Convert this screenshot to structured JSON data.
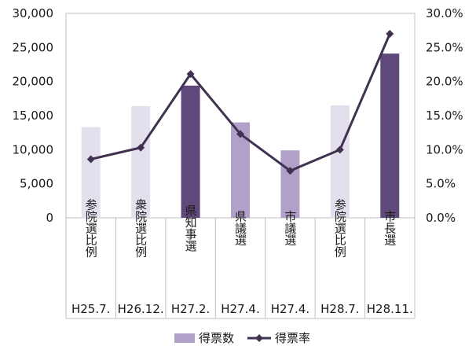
{
  "chart_data": {
    "type": "bar+line",
    "categories": [
      {
        "election": "参院選比例",
        "date": "H25.7."
      },
      {
        "election": "衆院選比例",
        "date": "H26.12."
      },
      {
        "election": "県知事選",
        "date": "H27.2."
      },
      {
        "election": "県議選",
        "date": "H27.4."
      },
      {
        "election": "市議選",
        "date": "H27.4."
      },
      {
        "election": "参院選比例",
        "date": "H28.7."
      },
      {
        "election": "市長選",
        "date": "H28.11."
      }
    ],
    "series": [
      {
        "name": "得票数",
        "type": "bar",
        "axis": "left",
        "values": [
          13300,
          16400,
          19400,
          14000,
          9900,
          16500,
          24100
        ],
        "colors": [
          "#e4dfec",
          "#e4dfec",
          "#5f497a",
          "#b1a0c7",
          "#b1a0c7",
          "#e4dfec",
          "#5f497a"
        ],
        "legend_color": "#b1a0c7"
      },
      {
        "name": "得票率",
        "type": "line",
        "axis": "right",
        "values": [
          8.6,
          10.3,
          21.1,
          12.3,
          6.9,
          10.0,
          27.0
        ],
        "color": "#403151"
      }
    ],
    "y_left": {
      "min": 0,
      "max": 30000,
      "step": 5000,
      "ticks": [
        "0",
        "5,000",
        "10,000",
        "15,000",
        "20,000",
        "25,000",
        "30,000"
      ]
    },
    "y_right": {
      "min": 0,
      "max": 30,
      "step": 5,
      "ticks": [
        "0.0%",
        "5.0%",
        "10.0%",
        "15.0%",
        "20.0%",
        "25.0%",
        "30.0%"
      ]
    },
    "grid": false,
    "legend_position": "bottom"
  }
}
